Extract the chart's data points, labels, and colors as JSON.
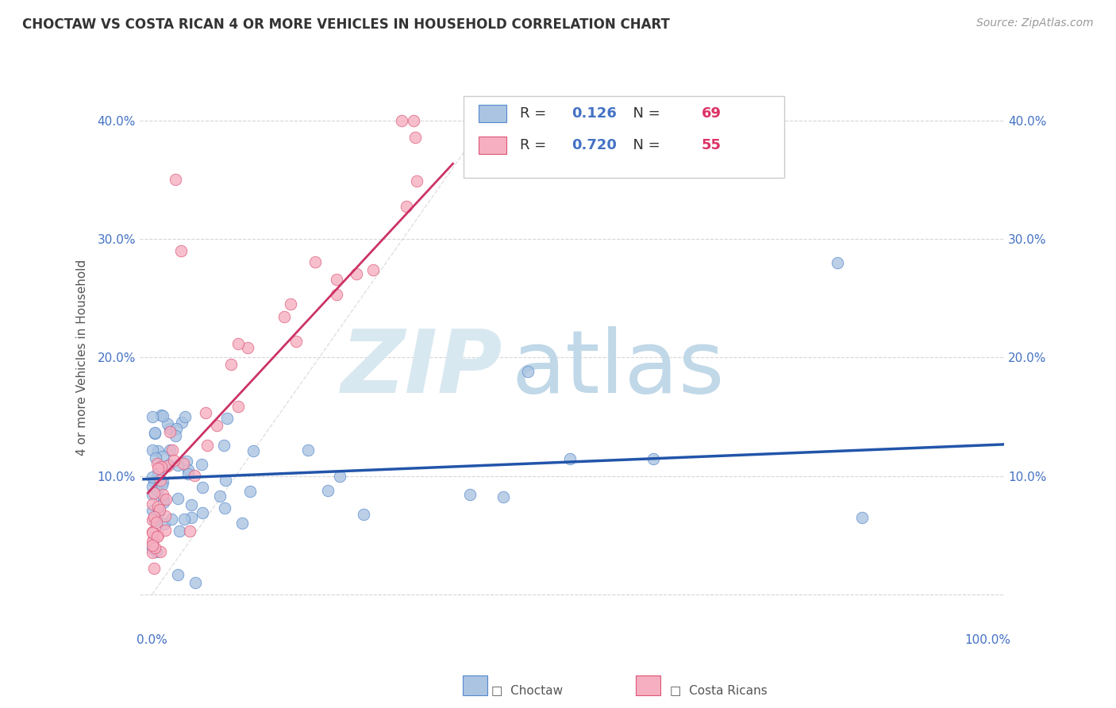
{
  "title": "CHOCTAW VS COSTA RICAN 4 OR MORE VEHICLES IN HOUSEHOLD CORRELATION CHART",
  "source_text": "Source: ZipAtlas.com",
  "ylabel": "4 or more Vehicles in Household",
  "R1": "0.126",
  "N1": "69",
  "R2": "0.720",
  "N2": "55",
  "color_choctaw": "#aac4e2",
  "color_costarican": "#f5afc0",
  "edge_choctaw": "#5588cc",
  "edge_costarican": "#dd5577",
  "trendline_choctaw": "#2255aa",
  "trendline_costarican": "#cc3366",
  "watermark_zip_color": "#d8e8f0",
  "watermark_atlas_color": "#c0d8e8",
  "background_color": "#ffffff",
  "grid_color": "#cccccc",
  "tick_color": "#4472c4",
  "title_color": "#333333",
  "source_color": "#999999",
  "legend_label1": "Choctaw",
  "legend_label2": "Costa Ricans"
}
